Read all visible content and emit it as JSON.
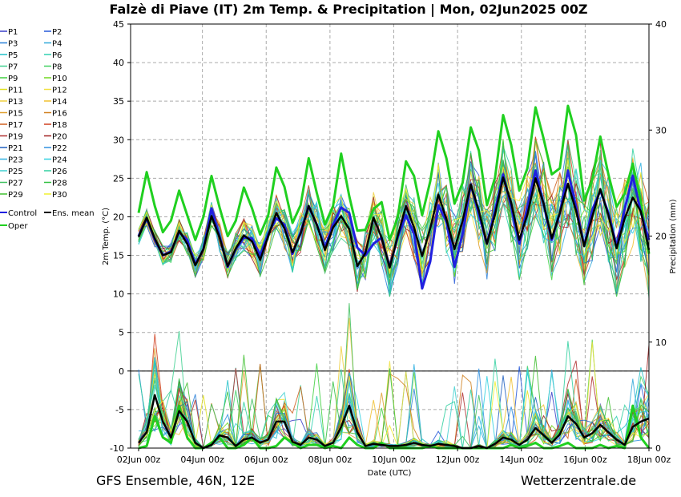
{
  "chart_data": {
    "type": "line",
    "title": "Falzè di Piave  (IT)  2m Temp. & Precipitation | Mon, 02Jun2025 00Z",
    "xlabel": "Date (UTC)",
    "ylabel_left": "2m Temp. (°C)",
    "ylabel_right": "Precipitation (mm)",
    "ylim_left": [
      -10,
      45
    ],
    "ylim_right": [
      0,
      40
    ],
    "left_ticks": [
      "-10",
      "-5",
      "0",
      "5",
      "10",
      "15",
      "20",
      "25",
      "30",
      "35",
      "40",
      "45"
    ],
    "right_ticks": [
      "0",
      "10",
      "20",
      "30",
      "40"
    ],
    "x_ticks": [
      "02Jun 00z",
      "04Jun 00z",
      "06Jun 00z",
      "08Jun 00z",
      "10Jun 00z",
      "12Jun 00z",
      "14Jun 00z",
      "16Jun 00z",
      "18Jun 00z"
    ],
    "grid": true,
    "legend_position": "left-outside",
    "footer_left": "GFS Ensemble, 46N, 12E",
    "footer_right": "Wetterzentrale.de",
    "legend": [
      "P1",
      "P2",
      "P3",
      "P4",
      "P5",
      "P6",
      "P7",
      "P8",
      "P9",
      "P10",
      "P11",
      "P12",
      "P13",
      "P14",
      "P15",
      "P16",
      "P17",
      "P18",
      "P19",
      "P20",
      "P21",
      "P22",
      "P23",
      "P24",
      "P25",
      "P26",
      "P27",
      "P28",
      "P29",
      "P30",
      "Control",
      "Ens. mean",
      "Oper"
    ],
    "legend_colors": [
      "#3a40c8",
      "#2458d8",
      "#2a80d8",
      "#30a8d8",
      "#20c0c8",
      "#30d0b0",
      "#40d090",
      "#40d060",
      "#40d040",
      "#70d820",
      "#e0e020",
      "#f0e040",
      "#f0d040",
      "#f0c030",
      "#e0a030",
      "#d08020",
      "#d06020",
      "#d04020",
      "#b03030",
      "#a02020",
      "#2060c0",
      "#3090e0",
      "#30b0e0",
      "#30d0e0",
      "#40d0d0",
      "#30d0a0",
      "#40c060",
      "#30c040",
      "#40c030",
      "#f0f030",
      "#2020e0",
      "#000000",
      "#20d020"
    ],
    "series": [
      {
        "name": "Oper",
        "temp": [
          20.5,
          25.8,
          21.4,
          18,
          19.5,
          23.4,
          20.2,
          17,
          20,
          25.3,
          21.2,
          17.5,
          19.5,
          23.8,
          21.1,
          17.7,
          20.2,
          26.4,
          23.9,
          19.2,
          21.5,
          27.6,
          23.1,
          19,
          21.4,
          28.2,
          22.7,
          18.2,
          18.3,
          21,
          21.9,
          17,
          20,
          27.2,
          25.3,
          20.2,
          24.6,
          31.1,
          27.6,
          21.7,
          24.4,
          31.6,
          28.6,
          21.5,
          25.1,
          33.2,
          29.3,
          23.4,
          26.3,
          34.2,
          30.1,
          25.5,
          26.3,
          34.4,
          30.6,
          22.1,
          24.8,
          30.4,
          25.5,
          21.3,
          23,
          26.9,
          22,
          15.2
        ],
        "precip": [
          0,
          0.2,
          3,
          1,
          0.5,
          4,
          1,
          0,
          0,
          0.5,
          1,
          0,
          0,
          0.3,
          1,
          0,
          0,
          0.2,
          1,
          0.5,
          0,
          0.3,
          0.3,
          0,
          0.2,
          0,
          1,
          0.3,
          0,
          0,
          0.5,
          0,
          0,
          0,
          0,
          0,
          0.2,
          0,
          0,
          0,
          0,
          0,
          0,
          0,
          0,
          0,
          0.3,
          0,
          0.2,
          0.5,
          0,
          0,
          0.2,
          0.5,
          0,
          0,
          0,
          0.3,
          0,
          0.2,
          0,
          4,
          1,
          0
        ]
      },
      {
        "name": "Control",
        "temp": [
          17.5,
          19.8,
          17,
          15,
          15.5,
          18,
          17,
          13.8,
          15.8,
          21.1,
          17.5,
          13.5,
          15.8,
          17.3,
          17.2,
          15,
          17.8,
          19.8,
          19,
          15.2,
          18,
          21.4,
          19,
          16,
          19,
          21.2,
          20.5,
          16,
          15,
          16.5,
          17.3,
          13.5,
          17.4,
          20.2,
          17.8,
          10.7,
          14.2,
          21.5,
          19.4,
          13.5,
          17.8,
          24.2,
          20.3,
          16.5,
          20.8,
          25.5,
          21.3,
          16.5,
          21.3,
          26,
          21.6,
          17,
          20.5,
          26,
          21.3,
          16.2,
          20.9,
          23.4,
          20.5,
          16.2,
          21,
          25.3,
          20.6,
          17
        ]
      },
      {
        "name": "Ens. mean",
        "temp": [
          17.4,
          19.9,
          17.2,
          15,
          15.4,
          18.2,
          16.5,
          13.7,
          15.8,
          20.1,
          17.3,
          13.6,
          15.9,
          17.6,
          16.8,
          14.4,
          17.5,
          20.5,
          18.5,
          15.4,
          17.8,
          21.4,
          19,
          15.7,
          18.6,
          20.1,
          18.4,
          13.6,
          15.3,
          19.9,
          17.3,
          13.4,
          17.6,
          21.4,
          18.6,
          14.9,
          18.5,
          22.9,
          19.7,
          15.8,
          19.5,
          24.2,
          20.8,
          16.5,
          20.3,
          25.1,
          21.8,
          17,
          20.3,
          25,
          21.7,
          17.2,
          20.5,
          24.3,
          20.8,
          16.2,
          20,
          23.6,
          20.2,
          15.9,
          19.8,
          22.5,
          20.7,
          15.7
        ],
        "precip": [
          0.5,
          1.5,
          5,
          2.5,
          1,
          3.5,
          2.5,
          0.5,
          0,
          0.3,
          1.2,
          1,
          0.2,
          0.8,
          1,
          0.5,
          0.8,
          2.5,
          2.5,
          0.6,
          0.3,
          1,
          0.8,
          0.2,
          0.5,
          2,
          4,
          1.5,
          0.2,
          0.4,
          0.3,
          0.2,
          0.2,
          0.3,
          0.5,
          0.3,
          0.2,
          0.4,
          0.3,
          0.2,
          0,
          0,
          0.2,
          0,
          0.4,
          1,
          0.8,
          0.3,
          0.8,
          1.9,
          1.2,
          0.5,
          1.3,
          3,
          2.3,
          1,
          1.4,
          2.2,
          1.5,
          0.8,
          0.3,
          2,
          2.5,
          2.8
        ]
      }
    ]
  }
}
